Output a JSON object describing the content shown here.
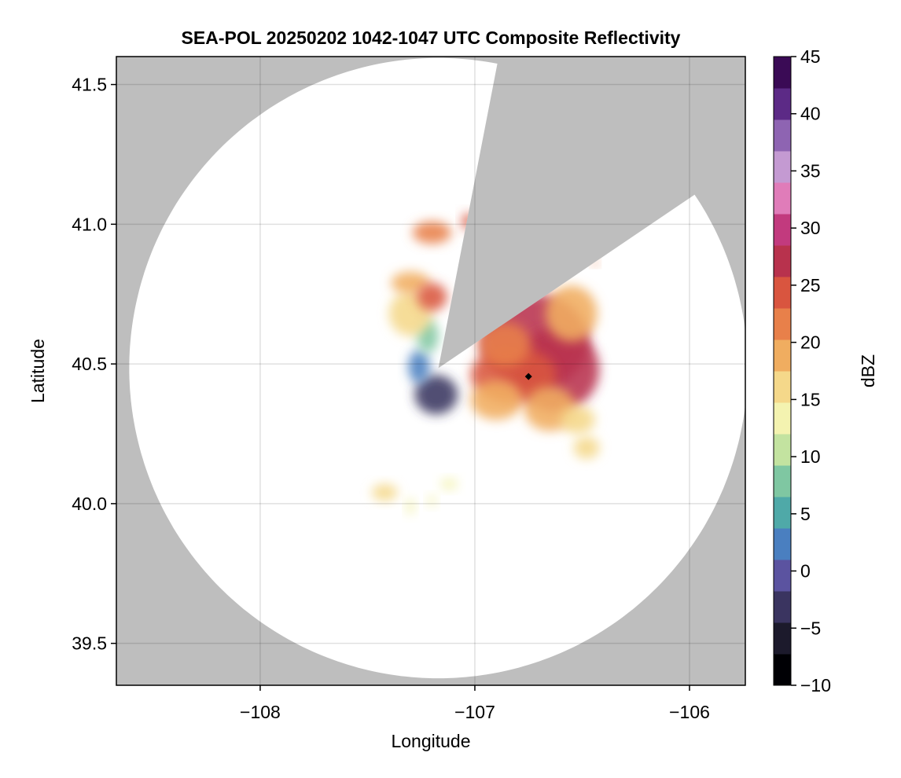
{
  "chart_data": {
    "type": "heatmap",
    "title": "SEA-POL 20250202 1042-1047 UTC Composite Reflectivity",
    "xlabel": "Longitude",
    "ylabel": "Latitude",
    "xlim": [
      -108.67,
      -105.74
    ],
    "ylim": [
      39.35,
      41.6
    ],
    "xticks": [
      -108,
      -107,
      -106
    ],
    "xtick_labels": [
      "−108",
      "−107",
      "−106"
    ],
    "yticks": [
      39.5,
      40.0,
      40.5,
      41.0,
      41.5
    ],
    "ytick_labels": [
      "39.5",
      "40.0",
      "40.5",
      "41.0",
      "41.5"
    ],
    "grid": true,
    "background_color": "#bebebe",
    "radar": {
      "center_lon": -107.17,
      "center_lat": 40.485,
      "range_lat_deg": 1.11,
      "range_lon_deg": 1.44,
      "blocked_sector_deg": [
        11,
        56
      ]
    },
    "marker": {
      "lon": -106.75,
      "lat": 40.455,
      "shape": "diamond",
      "color": "#000000"
    },
    "colorbar": {
      "label": "dBZ",
      "min": -10,
      "max": 45,
      "ticks": [
        -10,
        -5,
        0,
        5,
        10,
        15,
        20,
        25,
        30,
        35,
        40,
        45
      ],
      "tick_labels": [
        "−10",
        "−5",
        "0",
        "5",
        "10",
        "15",
        "20",
        "25",
        "30",
        "35",
        "40",
        "45"
      ],
      "colors": [
        "#000004",
        "#1c1a2c",
        "#3a3460",
        "#5b53a0",
        "#4a7fc0",
        "#4fa9a8",
        "#7fc7a2",
        "#c3e3a0",
        "#f4f3b0",
        "#f5d88a",
        "#f0ad60",
        "#e8804a",
        "#d9553f",
        "#b8324d",
        "#c23a7e",
        "#e07cb9",
        "#c49ad2",
        "#8e64b2",
        "#5c2a86",
        "#3a0a55"
      ]
    },
    "echoes": [
      {
        "lon": -106.72,
        "lat": 40.58,
        "rlon": 0.25,
        "rlat": 0.17,
        "dbz": 27
      },
      {
        "lon": -106.62,
        "lat": 40.48,
        "rlon": 0.2,
        "rlat": 0.15,
        "dbz": 28
      },
      {
        "lon": -106.82,
        "lat": 40.46,
        "rlon": 0.2,
        "rlat": 0.1,
        "dbz": 25
      },
      {
        "lon": -106.86,
        "lat": 40.57,
        "rlon": 0.12,
        "rlat": 0.08,
        "dbz": 22
      },
      {
        "lon": -106.55,
        "lat": 40.68,
        "rlon": 0.12,
        "rlat": 0.1,
        "dbz": 20
      },
      {
        "lon": -106.9,
        "lat": 40.37,
        "rlon": 0.12,
        "rlat": 0.07,
        "dbz": 18
      },
      {
        "lon": -106.65,
        "lat": 40.34,
        "rlon": 0.12,
        "rlat": 0.08,
        "dbz": 19
      },
      {
        "lon": -106.52,
        "lat": 40.3,
        "rlon": 0.08,
        "rlat": 0.05,
        "dbz": 17
      },
      {
        "lon": -106.48,
        "lat": 40.2,
        "rlon": 0.06,
        "rlat": 0.04,
        "dbz": 15
      },
      {
        "lon": -107.18,
        "lat": 40.39,
        "rlon": 0.1,
        "rlat": 0.07,
        "dbz": -2
      },
      {
        "lon": -107.26,
        "lat": 40.49,
        "rlon": 0.05,
        "rlat": 0.06,
        "dbz": 1
      },
      {
        "lon": -107.22,
        "lat": 40.6,
        "rlon": 0.05,
        "rlat": 0.06,
        "dbz": 8
      },
      {
        "lon": -107.3,
        "lat": 40.68,
        "rlon": 0.1,
        "rlat": 0.08,
        "dbz": 16
      },
      {
        "lon": -107.3,
        "lat": 40.79,
        "rlon": 0.09,
        "rlat": 0.04,
        "dbz": 18
      },
      {
        "lon": -107.2,
        "lat": 40.74,
        "rlon": 0.07,
        "rlat": 0.05,
        "dbz": 24
      },
      {
        "lon": -107.2,
        "lat": 40.97,
        "rlon": 0.09,
        "rlat": 0.04,
        "dbz": 22
      },
      {
        "lon": -107.03,
        "lat": 41.01,
        "rlon": 0.03,
        "rlat": 0.03,
        "dbz": 24
      },
      {
        "lon": -107.42,
        "lat": 40.04,
        "rlon": 0.06,
        "rlat": 0.03,
        "dbz": 17
      },
      {
        "lon": -107.12,
        "lat": 40.07,
        "rlon": 0.04,
        "rlat": 0.02,
        "dbz": 14
      },
      {
        "lon": -107.3,
        "lat": 39.99,
        "rlon": 0.02,
        "rlat": 0.03,
        "dbz": 14
      },
      {
        "lon": -107.2,
        "lat": 40.01,
        "rlon": 0.02,
        "rlat": 0.02,
        "dbz": 12
      },
      {
        "lon": -106.44,
        "lat": 40.86,
        "rlon": 0.015,
        "rlat": 0.01,
        "dbz": 22
      }
    ]
  }
}
